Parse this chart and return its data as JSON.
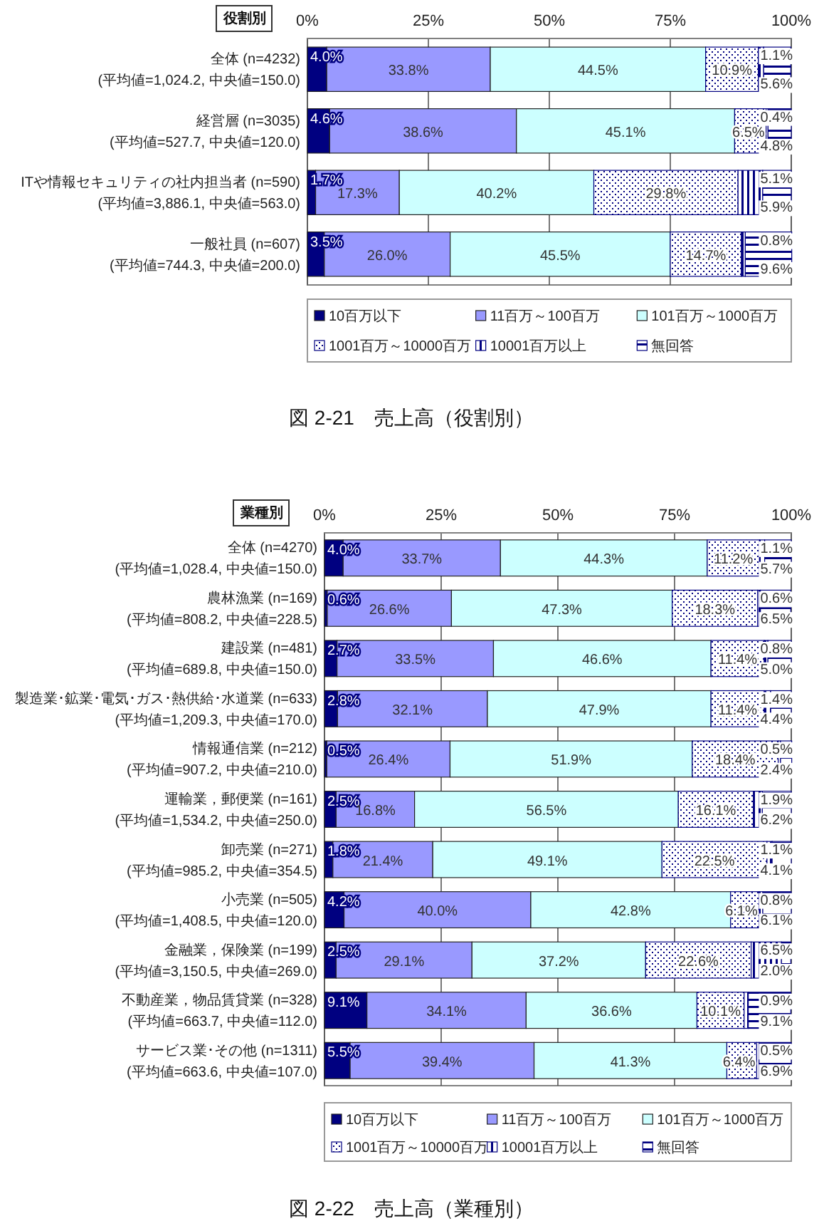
{
  "chart_data": [
    {
      "type": "bar",
      "orientation": "horizontal",
      "stacked": true,
      "title": "図 2-21　売上高（役割別）",
      "annotations": [
        "役割別"
      ],
      "categories": [
        "全体 (n=4232)\n(平均値=1,024.2, 中央値=150.0)",
        "経営層 (n=3035)\n(平均値=527.7, 中央値=120.0)",
        "ITや情報セキュリティの社内担当者 (n=590)\n(平均値=3,886.1, 中央値=563.0)",
        "一般社員 (n=607)\n(平均値=744.3, 中央値=200.0)"
      ],
      "series": [
        {
          "name": "10百万以下",
          "color": "#000080",
          "values": [
            4.0,
            4.6,
            1.7,
            3.5
          ],
          "value_labels": [
            "4.0%",
            "4.6%",
            "1.7%",
            "3.5%"
          ]
        },
        {
          "name": "11百万～100百万",
          "color": "#9999ff",
          "values": [
            33.8,
            38.6,
            17.3,
            26.0
          ],
          "value_labels": [
            "33.8%",
            "38.6%",
            "17.3%",
            "26.0%"
          ]
        },
        {
          "name": "101百万～1000百万",
          "color": "#ccffff",
          "values": [
            44.5,
            45.1,
            40.2,
            45.5
          ],
          "value_labels": [
            "44.5%",
            "45.1%",
            "40.2%",
            "45.5%"
          ]
        },
        {
          "name": "1001百万～10000百万",
          "color": "#000080",
          "values": [
            10.9,
            6.5,
            29.8,
            14.7
          ],
          "value_labels": [
            "10.9%",
            "6.5%",
            "29.8%",
            "14.7%"
          ]
        },
        {
          "name": "10001百万以上",
          "color": "#000080",
          "values": [
            1.1,
            0.4,
            5.1,
            0.8
          ],
          "value_labels": [
            "1.1%",
            "0.4%",
            "5.1%",
            "0.8%"
          ]
        },
        {
          "name": "無回答",
          "color": "#000080",
          "values": [
            5.6,
            4.8,
            5.9,
            9.6
          ],
          "value_labels": [
            "5.6%",
            "4.8%",
            "5.9%",
            "9.6%"
          ]
        }
      ],
      "xlim": [
        0,
        100
      ],
      "xticks": [
        {
          "value": 0,
          "label": "0%"
        },
        {
          "value": 25,
          "label": "25%"
        },
        {
          "value": 50,
          "label": "50%"
        },
        {
          "value": 75,
          "label": "75%"
        },
        {
          "value": 100,
          "label": "100%"
        }
      ],
      "grid": "x",
      "legend": "bottom"
    },
    {
      "type": "bar",
      "orientation": "horizontal",
      "stacked": true,
      "title": "図 2-22　売上高（業種別）",
      "annotations": [
        "業種別"
      ],
      "categories": [
        "全体 (n=4270)\n(平均値=1,028.4, 中央値=150.0)",
        "農林漁業 (n=169)\n(平均値=808.2, 中央値=228.5)",
        "建設業 (n=481)\n(平均値=689.8, 中央値=150.0)",
        "製造業･鉱業･電気･ガス･熱供給･水道業 (n=633)\n(平均値=1,209.3, 中央値=170.0)",
        "情報通信業 (n=212)\n(平均値=907.2, 中央値=210.0)",
        "運輸業，郵便業 (n=161)\n(平均値=1,534.2, 中央値=250.0)",
        "卸売業 (n=271)\n(平均値=985.2, 中央値=354.5)",
        "小売業 (n=505)\n(平均値=1,408.5, 中央値=120.0)",
        "金融業，保険業 (n=199)\n(平均値=3,150.5, 中央値=269.0)",
        "不動産業，物品賃貸業 (n=328)\n(平均値=663.7, 中央値=112.0)",
        "サービス業･その他 (n=1311)\n(平均値=663.6, 中央値=107.0)"
      ],
      "series": [
        {
          "name": "10百万以下",
          "color": "#000080",
          "values": [
            4.0,
            0.6,
            2.7,
            2.8,
            0.5,
            2.5,
            1.8,
            4.2,
            2.5,
            9.1,
            5.5
          ],
          "value_labels": [
            "4.0%",
            "0.6%",
            "2.7%",
            "2.8%",
            "0.5%",
            "2.5%",
            "1.8%",
            "4.2%",
            "2.5%",
            "9.1%",
            "5.5%"
          ]
        },
        {
          "name": "11百万～100百万",
          "color": "#9999ff",
          "values": [
            33.7,
            26.6,
            33.5,
            32.1,
            26.4,
            16.8,
            21.4,
            40.0,
            29.1,
            34.1,
            39.4
          ],
          "value_labels": [
            "33.7%",
            "26.6%",
            "33.5%",
            "32.1%",
            "26.4%",
            "16.8%",
            "21.4%",
            "40.0%",
            "29.1%",
            "34.1%",
            "39.4%"
          ]
        },
        {
          "name": "101百万～1000百万",
          "color": "#ccffff",
          "values": [
            44.3,
            47.3,
            46.6,
            47.9,
            51.9,
            56.5,
            49.1,
            42.8,
            37.2,
            36.6,
            41.3
          ],
          "value_labels": [
            "44.3%",
            "47.3%",
            "46.6%",
            "47.9%",
            "51.9%",
            "56.5%",
            "49.1%",
            "42.8%",
            "37.2%",
            "36.6%",
            "41.3%"
          ]
        },
        {
          "name": "1001百万～10000百万",
          "color": "#000080",
          "values": [
            11.2,
            18.3,
            11.4,
            11.4,
            18.4,
            16.1,
            22.5,
            6.1,
            22.6,
            10.1,
            6.4
          ],
          "value_labels": [
            "11.2%",
            "18.3%",
            "11.4%",
            "11.4%",
            "18.4%",
            "16.1%",
            "22.5%",
            "6.1%",
            "22.6%",
            "10.1%",
            "6.4%"
          ]
        },
        {
          "name": "10001百万以上",
          "color": "#000080",
          "values": [
            1.1,
            0.6,
            0.8,
            1.4,
            0.5,
            1.9,
            1.1,
            0.8,
            6.5,
            0.9,
            0.5
          ],
          "value_labels": [
            "1.1%",
            "0.6%",
            "0.8%",
            "1.4%",
            "0.5%",
            "1.9%",
            "1.1%",
            "0.8%",
            "6.5%",
            "0.9%",
            "0.5%"
          ]
        },
        {
          "name": "無回答",
          "color": "#000080",
          "values": [
            5.7,
            6.5,
            5.0,
            4.4,
            2.4,
            6.2,
            4.1,
            6.1,
            2.0,
            9.1,
            6.9
          ],
          "value_labels": [
            "5.7%",
            "6.5%",
            "5.0%",
            "4.4%",
            "2.4%",
            "6.2%",
            "4.1%",
            "6.1%",
            "2.0%",
            "9.1%",
            "6.9%"
          ]
        }
      ],
      "xlim": [
        0,
        100
      ],
      "xticks": [
        {
          "value": 0,
          "label": "0%"
        },
        {
          "value": 25,
          "label": "25%"
        },
        {
          "value": 50,
          "label": "50%"
        },
        {
          "value": 75,
          "label": "75%"
        },
        {
          "value": 100,
          "label": "100%"
        }
      ],
      "grid": "x",
      "legend": "bottom"
    }
  ]
}
